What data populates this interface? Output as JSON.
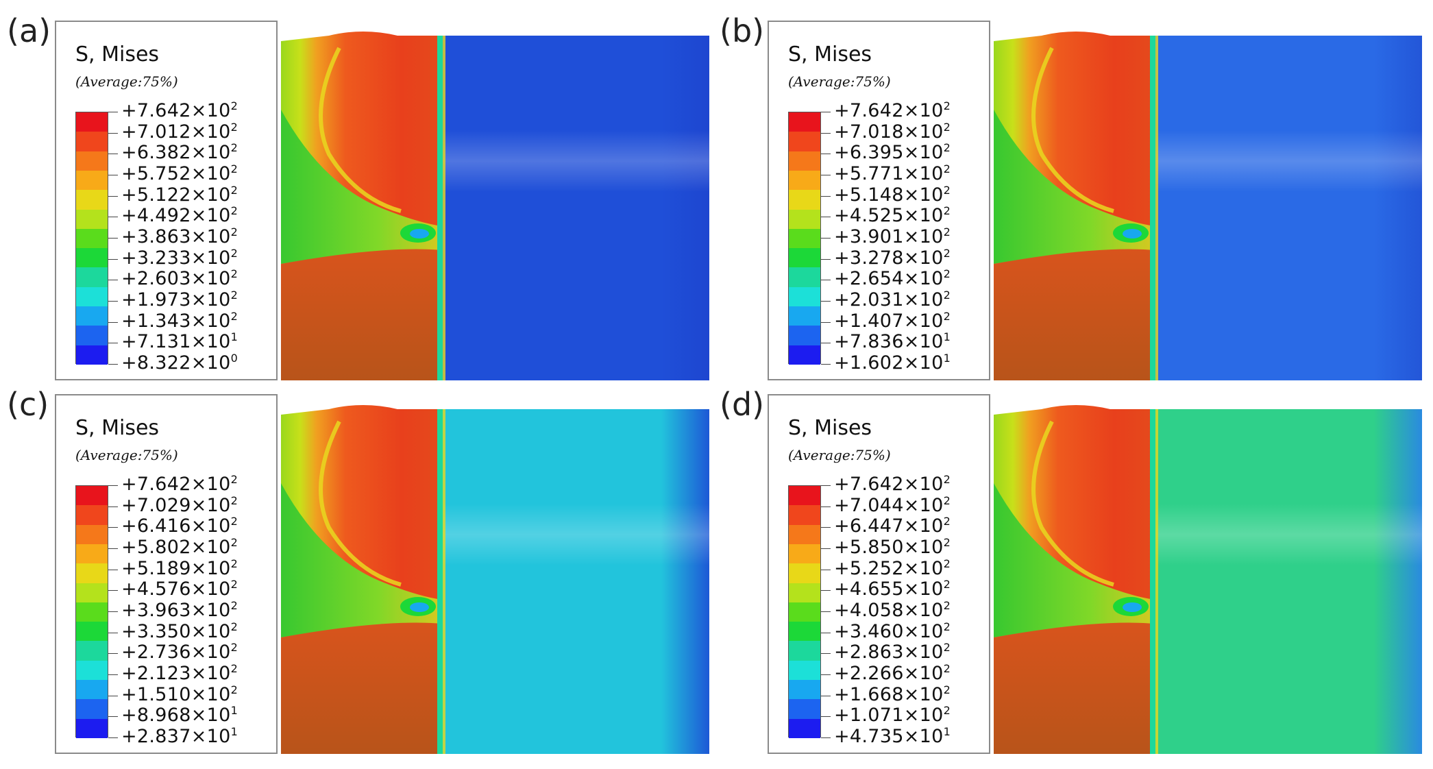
{
  "figure": {
    "panels": [
      {
        "id": "a",
        "label": "(a)",
        "legend_title": "S, Mises",
        "legend_subtitle": "(Average:75%)",
        "legend_values": [
          "+7.642×10²",
          "+7.012×10²",
          "+6.382×10²",
          "+5.752×10²",
          "+5.122×10²",
          "+4.492×10²",
          "+3.863×10²",
          "+3.233×10²",
          "+2.603×10²",
          "+1.973×10²",
          "+1.343×10²",
          "+7.131×10¹",
          "+8.322×10⁰"
        ],
        "right_region_color": "#1f4fd8",
        "right_edge_color": "#1e46d0"
      },
      {
        "id": "b",
        "label": "(b)",
        "legend_title": "S, Mises",
        "legend_subtitle": "(Average:75%)",
        "legend_values": [
          "+7.642×10²",
          "+7.018×10²",
          "+6.395×10²",
          "+5.771×10²",
          "+5.148×10²",
          "+4.525×10²",
          "+3.901×10²",
          "+3.278×10²",
          "+2.654×10²",
          "+2.031×10²",
          "+1.407×10²",
          "+7.836×10¹",
          "+1.602×10¹"
        ],
        "right_region_color": "#2a6ae6",
        "right_edge_color": "#2356d8"
      },
      {
        "id": "c",
        "label": "(c)",
        "legend_title": "S, Mises",
        "legend_subtitle": "(Average:75%)",
        "legend_values": [
          "+7.642×10²",
          "+7.029×10²",
          "+6.416×10²",
          "+5.802×10²",
          "+5.189×10²",
          "+4.576×10²",
          "+3.963×10²",
          "+3.350×10²",
          "+2.736×10²",
          "+2.123×10²",
          "+1.510×10²",
          "+8.968×10¹",
          "+2.837×10¹"
        ],
        "right_region_color": "#22c4dc",
        "right_edge_color": "#1d58d6"
      },
      {
        "id": "d",
        "label": "(d)",
        "legend_title": "S, Mises",
        "legend_subtitle": "(Average:75%)",
        "legend_values": [
          "+7.642×10²",
          "+7.044×10²",
          "+6.447×10²",
          "+5.850×10²",
          "+5.252×10²",
          "+4.655×10²",
          "+4.058×10²",
          "+3.460×10²",
          "+2.863×10²",
          "+2.266×10²",
          "+1.668×10²",
          "+1.071×10²",
          "+4.735×10¹"
        ],
        "right_region_color": "#2fd08a",
        "right_edge_color": "#2a8ae0"
      }
    ],
    "colormap": [
      "#e8141c",
      "#f0461c",
      "#f5781a",
      "#f8aa18",
      "#e8d818",
      "#b4e21c",
      "#5adc1c",
      "#1cd838",
      "#1cd89c",
      "#1ce0d8",
      "#18a8f0",
      "#1c64f0",
      "#1c1cf0"
    ]
  }
}
